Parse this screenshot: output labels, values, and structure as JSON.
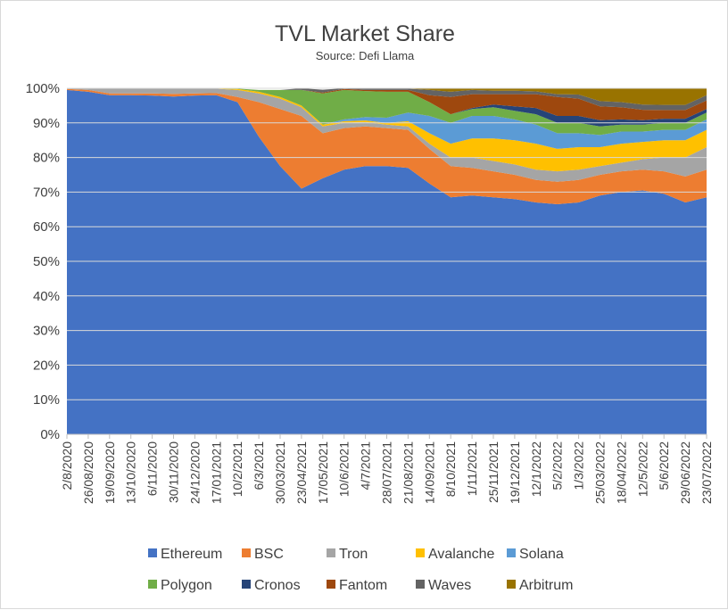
{
  "chart_data": {
    "type": "area",
    "stacked": true,
    "percent": true,
    "title": "TVL Market Share",
    "subtitle": "Source: Defi Llama",
    "xlabel": "",
    "ylabel": "",
    "ylim": [
      0,
      100
    ],
    "yticks": [
      "0%",
      "10%",
      "20%",
      "30%",
      "40%",
      "50%",
      "60%",
      "70%",
      "80%",
      "90%",
      "100%"
    ],
    "xticks": [
      "2/8/2020",
      "26/08/2020",
      "19/09/2020",
      "13/10/2020",
      "6/11/2020",
      "30/11/2020",
      "24/12/2020",
      "17/01/2021",
      "10/2/2021",
      "6/3/2021",
      "30/03/2021",
      "23/04/2021",
      "17/05/2021",
      "10/6/2021",
      "4/7/2021",
      "28/07/2021",
      "21/08/2021",
      "14/09/2021",
      "8/10/2021",
      "1/11/2021",
      "25/11/2021",
      "19/12/2021",
      "12/1/2022",
      "5/2/2022",
      "1/3/2022",
      "25/03/2022",
      "18/04/2022",
      "12/5/2022",
      "5/6/2022",
      "29/06/2022",
      "23/07/2022"
    ],
    "legend_position": "bottom",
    "series": [
      {
        "name": "Ethereum",
        "color": "#4472C4",
        "values": [
          99.5,
          99.0,
          98.0,
          98.0,
          97.9,
          97.6,
          97.9,
          98.0,
          96.0,
          86.0,
          77.5,
          71.0,
          74.0,
          76.5,
          77.5,
          77.5,
          77.0,
          72.5,
          68.5,
          69.0,
          68.5,
          68.0,
          67.0,
          66.5,
          67.0,
          69.0,
          70.0,
          70.5,
          69.5,
          67.0,
          68.5
        ]
      },
      {
        "name": "BSC",
        "color": "#ED7D31",
        "values": [
          0.3,
          0.5,
          0.5,
          0.5,
          0.6,
          0.8,
          0.6,
          0.6,
          1.5,
          10.0,
          16.5,
          21.0,
          13.0,
          12.0,
          11.5,
          11.0,
          11.0,
          10.0,
          9.0,
          8.0,
          7.5,
          7.0,
          6.5,
          6.5,
          6.5,
          6.0,
          6.0,
          6.0,
          6.5,
          7.5,
          8.0
        ]
      },
      {
        "name": "Tron",
        "color": "#A5A5A5",
        "values": [
          0.2,
          0.5,
          1.5,
          1.5,
          1.5,
          1.5,
          1.4,
          1.3,
          2.0,
          2.5,
          3.0,
          2.5,
          2.0,
          1.5,
          1.2,
          1.0,
          1.0,
          1.5,
          2.5,
          3.0,
          3.0,
          3.0,
          3.0,
          3.0,
          3.0,
          2.5,
          2.5,
          3.0,
          4.0,
          5.5,
          6.5
        ]
      },
      {
        "name": "Avalanche",
        "color": "#FFC000",
        "values": [
          0,
          0,
          0,
          0,
          0,
          0,
          0,
          0,
          0.3,
          0.5,
          0.5,
          0.5,
          0.5,
          0.5,
          0.5,
          0.5,
          1.5,
          3.0,
          4.0,
          5.5,
          6.5,
          7.0,
          7.5,
          6.5,
          6.5,
          5.5,
          5.5,
          5.0,
          5.0,
          5.0,
          5.0
        ]
      },
      {
        "name": "Solana",
        "color": "#5B9BD5",
        "values": [
          0,
          0,
          0,
          0,
          0,
          0,
          0,
          0,
          0,
          0,
          0,
          0,
          0,
          0.5,
          1.0,
          1.5,
          2.5,
          5.0,
          6.0,
          6.5,
          6.5,
          6.0,
          5.5,
          4.5,
          4.0,
          3.5,
          3.5,
          3.0,
          3.0,
          3.0,
          3.0
        ]
      },
      {
        "name": "Polygon",
        "color": "#70AD47",
        "values": [
          0,
          0,
          0,
          0,
          0,
          0,
          0,
          0,
          0.1,
          0.5,
          2.0,
          4.5,
          9.0,
          8.5,
          7.5,
          7.5,
          6.0,
          4.0,
          2.5,
          2.0,
          2.5,
          2.5,
          3.0,
          3.0,
          3.0,
          2.5,
          2.0,
          2.0,
          2.0,
          2.0,
          2.0
        ]
      },
      {
        "name": "Cronos",
        "color": "#264478",
        "values": [
          0,
          0,
          0,
          0,
          0,
          0,
          0,
          0,
          0,
          0,
          0,
          0,
          0,
          0,
          0,
          0,
          0,
          0,
          0,
          0.3,
          0.8,
          1.3,
          1.8,
          2.0,
          2.0,
          1.8,
          1.5,
          1.3,
          1.2,
          1.2,
          1.0
        ]
      },
      {
        "name": "Fantom",
        "color": "#9E480E",
        "values": [
          0,
          0,
          0,
          0,
          0,
          0,
          0,
          0,
          0,
          0,
          0,
          0,
          0.3,
          0.3,
          0.3,
          0.5,
          0.5,
          2.0,
          5.0,
          4.0,
          3.0,
          3.5,
          4.0,
          5.5,
          5.0,
          4.0,
          3.5,
          3.0,
          2.5,
          2.5,
          2.5
        ]
      },
      {
        "name": "Waves",
        "color": "#636363",
        "values": [
          0,
          0,
          0,
          0,
          0,
          0,
          0,
          0,
          0,
          0,
          0,
          0.5,
          0.8,
          0.6,
          0.4,
          0.4,
          0.4,
          1.5,
          1.5,
          1.2,
          1.0,
          1.0,
          0.8,
          0.8,
          1.2,
          1.5,
          1.5,
          1.5,
          1.5,
          1.5,
          1.5
        ]
      },
      {
        "name": "Arbitrum",
        "color": "#997300",
        "values": [
          0,
          0,
          0,
          0,
          0,
          0,
          0,
          0,
          0,
          0,
          0,
          0,
          0,
          0,
          0,
          0.1,
          0.1,
          0.5,
          1.0,
          0.5,
          0.7,
          0.7,
          0.9,
          1.7,
          2.3,
          3.7,
          4.0,
          4.7,
          4.8,
          4.8,
          2.0
        ]
      }
    ]
  }
}
